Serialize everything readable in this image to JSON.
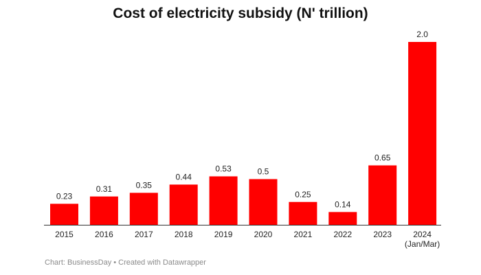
{
  "chart_data": {
    "type": "bar",
    "title": "Cost of electricity subsidy (N' trillion)",
    "categories": [
      "2015",
      "2016",
      "2017",
      "2018",
      "2019",
      "2020",
      "2021",
      "2022",
      "2023",
      "2024"
    ],
    "category_sublabels": [
      "",
      "",
      "",
      "",
      "",
      "",
      "",
      "",
      "",
      "(Jan/Mar)"
    ],
    "values": [
      0.23,
      0.31,
      0.35,
      0.44,
      0.53,
      0.5,
      0.25,
      0.14,
      0.65,
      2.0
    ],
    "value_labels": [
      "0.23",
      "0.31",
      "0.35",
      "0.44",
      "0.53",
      "0.5",
      "0.25",
      "0.14",
      "0.65",
      "2.0"
    ],
    "ylim": [
      0,
      2.0
    ],
    "xlabel": "",
    "ylabel": "",
    "grid": false,
    "bar_color": "#ff0000"
  },
  "footer": "Chart: BusinessDay • Created with Datawrapper"
}
